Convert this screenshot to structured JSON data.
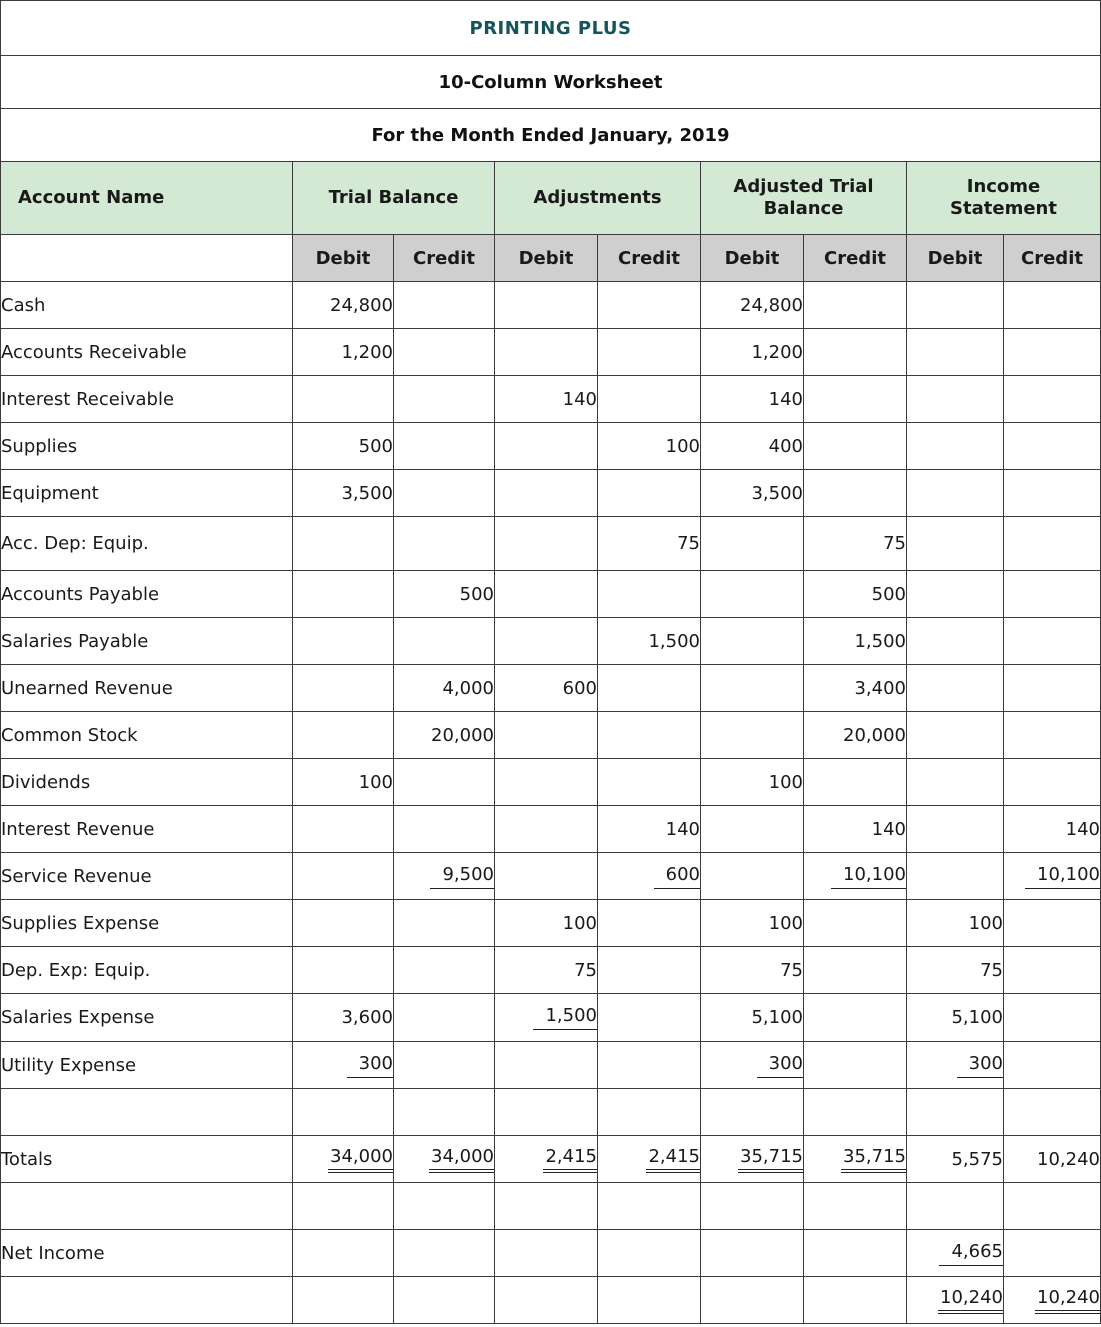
{
  "header": {
    "company": "PRINTING PLUS",
    "title": "10-Column Worksheet",
    "period": "For the Month Ended January, 2019"
  },
  "columns": {
    "account_name": "Account Name",
    "groups": [
      "Trial Balance",
      "Adjustments",
      "Adjusted Trial Balance",
      "Income Statement"
    ],
    "sub": [
      "Debit",
      "Credit",
      "Debit",
      "Credit",
      "Debit",
      "Credit",
      "Debit",
      "Credit"
    ]
  },
  "rows": [
    {
      "name": "Cash",
      "values": [
        "24,800",
        "",
        "",
        "",
        "24,800",
        "",
        "",
        ""
      ]
    },
    {
      "name": "Accounts Receivable",
      "values": [
        "1,200",
        "",
        "",
        "",
        "1,200",
        "",
        "",
        ""
      ]
    },
    {
      "name": "Interest Receivable",
      "values": [
        "",
        "",
        "140",
        "",
        "140",
        "",
        "",
        ""
      ]
    },
    {
      "name": "Supplies",
      "values": [
        "500",
        "",
        "",
        "100",
        "400",
        "",
        "",
        ""
      ]
    },
    {
      "name": "Equipment",
      "values": [
        "3,500",
        "",
        "",
        "",
        "3,500",
        "",
        "",
        ""
      ]
    },
    {
      "name": "Acc. Dep: Equip.",
      "values": [
        "",
        "",
        "",
        "75",
        "",
        "75",
        "",
        ""
      ]
    },
    {
      "name": "Accounts Payable",
      "values": [
        "",
        "500",
        "",
        "",
        "",
        "500",
        "",
        ""
      ]
    },
    {
      "name": "Salaries Payable",
      "values": [
        "",
        "",
        "",
        "1,500",
        "",
        "1,500",
        "",
        ""
      ]
    },
    {
      "name": "Unearned Revenue",
      "values": [
        "",
        "4,000",
        "600",
        "",
        "",
        "3,400",
        "",
        ""
      ]
    },
    {
      "name": "Common Stock",
      "values": [
        "",
        "20,000",
        "",
        "",
        "",
        "20,000",
        "",
        ""
      ]
    },
    {
      "name": "Dividends",
      "values": [
        "100",
        "",
        "",
        "",
        "100",
        "",
        "",
        ""
      ]
    },
    {
      "name": "Interest Revenue",
      "values": [
        "",
        "",
        "",
        "140",
        "",
        "140",
        "",
        "140"
      ]
    },
    {
      "name": "Service Revenue",
      "values": [
        "",
        "9,500",
        "",
        "600",
        "",
        "10,100",
        "",
        "10,100"
      ]
    },
    {
      "name": "Supplies Expense",
      "values": [
        "",
        "",
        "100",
        "",
        "100",
        "",
        "100",
        ""
      ]
    },
    {
      "name": "Dep. Exp: Equip.",
      "values": [
        "",
        "",
        "75",
        "",
        "75",
        "",
        "75",
        ""
      ]
    },
    {
      "name": "Salaries Expense",
      "values": [
        "3,600",
        "",
        "1,500",
        "",
        "5,100",
        "",
        "5,100",
        ""
      ]
    },
    {
      "name": "Utility Expense",
      "values": [
        "300",
        "",
        "",
        "",
        "300",
        "",
        "300",
        ""
      ]
    },
    {
      "name": "",
      "values": [
        "",
        "",
        "",
        "",
        "",
        "",
        "",
        ""
      ]
    },
    {
      "name": "Totals",
      "values": [
        "34,000",
        "34,000",
        "2,415",
        "2,415",
        "35,715",
        "35,715",
        "5,575",
        "10,240"
      ]
    },
    {
      "name": "",
      "values": [
        "",
        "",
        "",
        "",
        "",
        "",
        "",
        ""
      ]
    },
    {
      "name": "Net Income",
      "values": [
        "",
        "",
        "",
        "",
        "",
        "",
        "4,665",
        ""
      ]
    },
    {
      "name": "",
      "values": [
        "",
        "",
        "",
        "",
        "",
        "",
        "10,240",
        "10,240"
      ]
    }
  ]
}
